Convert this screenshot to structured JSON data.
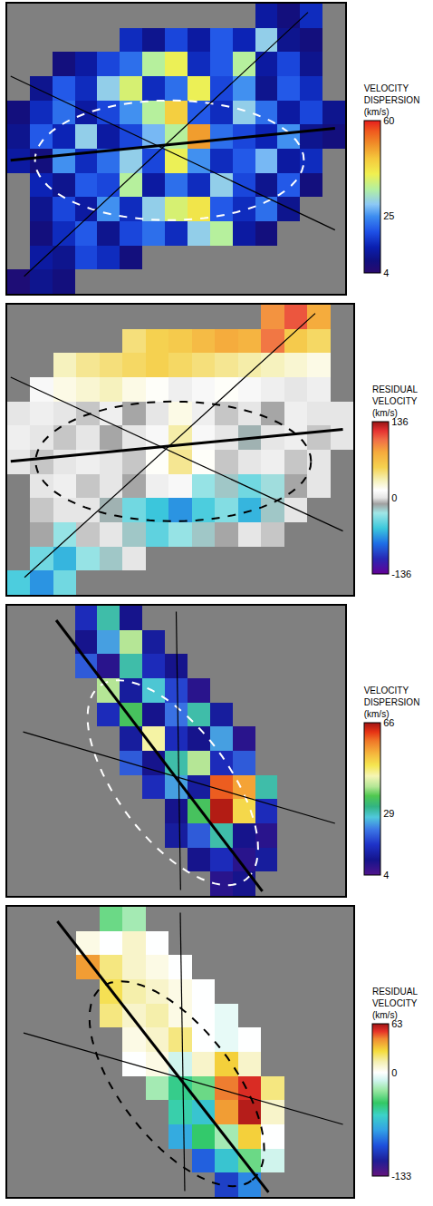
{
  "chart_data": [
    {
      "type": "heatmap",
      "tick_labels": false,
      "colorbar": {
        "title": "VELOCITY DISPERSION (km/s)",
        "zlim": [
          4,
          60
        ],
        "zticks": [
          60,
          25,
          4
        ]
      },
      "z": [
        [
          null,
          null,
          null,
          null,
          null,
          null,
          null,
          null,
          null,
          null,
          null,
          12,
          8,
          15,
          null
        ],
        [
          null,
          null,
          null,
          null,
          null,
          15,
          10,
          18,
          12,
          20,
          14,
          30,
          10,
          8,
          null
        ],
        [
          null,
          null,
          8,
          12,
          18,
          22,
          35,
          40,
          15,
          20,
          35,
          12,
          18,
          10,
          null
        ],
        [
          null,
          10,
          20,
          15,
          30,
          38,
          15,
          22,
          40,
          18,
          25,
          10,
          20,
          15,
          null
        ],
        [
          8,
          15,
          22,
          12,
          18,
          25,
          35,
          45,
          20,
          15,
          30,
          22,
          12,
          18,
          10
        ],
        [
          10,
          20,
          14,
          30,
          12,
          18,
          28,
          35,
          50,
          22,
          18,
          14,
          25,
          10,
          8
        ],
        [
          12,
          8,
          25,
          15,
          22,
          30,
          18,
          40,
          25,
          15,
          20,
          28,
          12,
          15,
          null
        ],
        [
          null,
          14,
          10,
          20,
          18,
          35,
          12,
          22,
          15,
          30,
          18,
          10,
          20,
          8,
          null
        ],
        [
          null,
          10,
          18,
          12,
          25,
          15,
          30,
          38,
          42,
          20,
          15,
          22,
          10,
          null,
          null
        ],
        [
          null,
          8,
          15,
          20,
          10,
          18,
          22,
          15,
          30,
          35,
          12,
          8,
          null,
          null,
          null
        ],
        [
          null,
          12,
          10,
          18,
          15,
          8,
          null,
          null,
          null,
          null,
          null,
          null,
          null,
          null,
          null
        ],
        [
          6,
          10,
          8,
          null,
          null,
          null,
          null,
          null,
          null,
          null,
          null,
          null,
          null,
          null,
          null
        ]
      ]
    },
    {
      "type": "heatmap",
      "tick_labels": false,
      "colorbar": {
        "title": "RESIDUAL VELOCITY (km/s)",
        "zlim": [
          -136,
          136
        ],
        "zticks": [
          136,
          0,
          -136
        ]
      },
      "z": [
        [
          null,
          null,
          null,
          null,
          null,
          null,
          null,
          null,
          null,
          null,
          null,
          90,
          110,
          80,
          null
        ],
        [
          null,
          null,
          null,
          null,
          null,
          45,
          55,
          60,
          70,
          80,
          75,
          100,
          60,
          50,
          null
        ],
        [
          null,
          null,
          30,
          40,
          45,
          50,
          55,
          50,
          45,
          40,
          35,
          30,
          25,
          20,
          null
        ],
        [
          null,
          10,
          20,
          25,
          30,
          20,
          15,
          5,
          10,
          15,
          10,
          5,
          0,
          5,
          null
        ],
        [
          0,
          5,
          0,
          -5,
          5,
          -10,
          0,
          20,
          5,
          -5,
          0,
          -10,
          5,
          0,
          0
        ],
        [
          5,
          0,
          -5,
          0,
          -10,
          0,
          10,
          35,
          10,
          0,
          -15,
          0,
          5,
          -5,
          0
        ],
        [
          0,
          -5,
          0,
          5,
          0,
          -5,
          15,
          40,
          15,
          -5,
          0,
          5,
          -5,
          0,
          null
        ],
        [
          null,
          0,
          5,
          -5,
          0,
          -10,
          5,
          10,
          -30,
          -20,
          -40,
          -25,
          -10,
          0,
          null
        ],
        [
          null,
          -5,
          0,
          0,
          -15,
          -40,
          -55,
          -70,
          -50,
          -35,
          -60,
          -20,
          0,
          null,
          null
        ],
        [
          null,
          -10,
          -30,
          -5,
          0,
          -20,
          -45,
          -30,
          -20,
          -10,
          0,
          -5,
          null,
          null,
          null
        ],
        [
          null,
          -40,
          -60,
          -30,
          -20,
          0,
          null,
          null,
          null,
          null,
          null,
          null,
          null,
          null,
          null
        ],
        [
          -50,
          -70,
          -40,
          null,
          null,
          null,
          null,
          null,
          null,
          null,
          null,
          null,
          null,
          null,
          null
        ]
      ]
    },
    {
      "type": "heatmap",
      "tick_labels": false,
      "colorbar": {
        "title": "VELOCITY DISPERSION (km/s)",
        "zlim": [
          4,
          66
        ],
        "zticks": [
          66,
          29,
          4
        ]
      },
      "z": [
        [
          null,
          null,
          null,
          15,
          30,
          10,
          null,
          null,
          null,
          null,
          null,
          null,
          null,
          null,
          null
        ],
        [
          null,
          null,
          null,
          10,
          25,
          40,
          12,
          null,
          null,
          null,
          null,
          null,
          null,
          null,
          null
        ],
        [
          null,
          null,
          null,
          20,
          8,
          30,
          15,
          10,
          null,
          null,
          null,
          null,
          null,
          null,
          null
        ],
        [
          null,
          null,
          null,
          null,
          40,
          12,
          28,
          18,
          8,
          null,
          null,
          null,
          null,
          null,
          null
        ],
        [
          null,
          null,
          null,
          null,
          15,
          35,
          10,
          22,
          30,
          12,
          null,
          null,
          null,
          null,
          null
        ],
        [
          null,
          null,
          null,
          null,
          null,
          12,
          45,
          15,
          10,
          25,
          8,
          null,
          null,
          null,
          null
        ],
        [
          null,
          null,
          null,
          null,
          null,
          20,
          10,
          30,
          40,
          15,
          20,
          null,
          null,
          null,
          null
        ],
        [
          null,
          null,
          null,
          null,
          null,
          null,
          15,
          25,
          12,
          60,
          55,
          30,
          null,
          null,
          null
        ],
        [
          null,
          null,
          null,
          null,
          null,
          null,
          null,
          10,
          35,
          65,
          50,
          15,
          null,
          null,
          null
        ],
        [
          null,
          null,
          null,
          null,
          null,
          null,
          null,
          12,
          20,
          30,
          10,
          8,
          null,
          null,
          null
        ],
        [
          null,
          null,
          null,
          null,
          null,
          null,
          null,
          null,
          10,
          15,
          8,
          12,
          null,
          null,
          null
        ],
        [
          null,
          null,
          null,
          null,
          null,
          null,
          null,
          null,
          null,
          8,
          10,
          null,
          null,
          null,
          null
        ]
      ]
    },
    {
      "type": "heatmap",
      "tick_labels": false,
      "colorbar": {
        "title": "RESIDUAL VELOCITY (km/s)",
        "zlim": [
          -133,
          63
        ],
        "zticks": [
          63,
          0,
          -133
        ]
      },
      "z": [
        [
          null,
          null,
          null,
          null,
          -30,
          -20,
          null,
          null,
          null,
          null,
          null,
          null,
          null,
          null,
          null
        ],
        [
          null,
          null,
          null,
          5,
          0,
          10,
          0,
          null,
          null,
          null,
          null,
          null,
          null,
          null,
          null
        ],
        [
          null,
          null,
          null,
          40,
          20,
          10,
          5,
          0,
          null,
          null,
          null,
          null,
          null,
          null,
          null
        ],
        [
          null,
          null,
          null,
          null,
          25,
          15,
          10,
          5,
          0,
          null,
          null,
          null,
          null,
          null,
          null
        ],
        [
          null,
          null,
          null,
          null,
          20,
          10,
          15,
          5,
          0,
          -5,
          null,
          null,
          null,
          null,
          null
        ],
        [
          null,
          null,
          null,
          null,
          null,
          5,
          10,
          20,
          0,
          -5,
          0,
          null,
          null,
          null,
          null
        ],
        [
          null,
          null,
          null,
          null,
          null,
          0,
          5,
          -10,
          10,
          30,
          10,
          null,
          null,
          null,
          null
        ],
        [
          null,
          null,
          null,
          null,
          null,
          null,
          -20,
          -45,
          -30,
          45,
          55,
          20,
          null,
          null,
          null
        ],
        [
          null,
          null,
          null,
          null,
          null,
          null,
          null,
          -50,
          -60,
          40,
          60,
          10,
          null,
          null,
          null
        ],
        [
          null,
          null,
          null,
          null,
          null,
          null,
          null,
          -70,
          -40,
          -20,
          30,
          0,
          null,
          null,
          null
        ],
        [
          null,
          null,
          null,
          null,
          null,
          null,
          null,
          null,
          -90,
          -60,
          -30,
          -10,
          null,
          null,
          null
        ],
        [
          null,
          null,
          null,
          null,
          null,
          null,
          null,
          null,
          null,
          -100,
          -80,
          null,
          null,
          null,
          null
        ]
      ]
    }
  ]
}
